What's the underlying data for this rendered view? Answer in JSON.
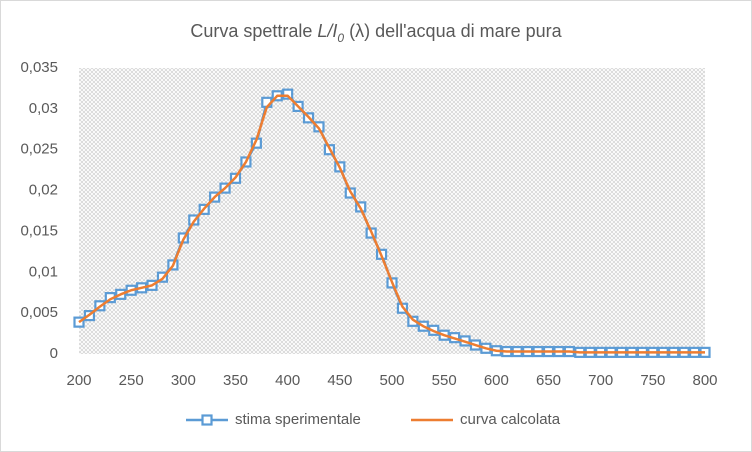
{
  "chart_data": {
    "type": "line",
    "title": [
      "Curva spettrale ",
      "L/I",
      "0",
      " (λ)",
      " dell'acqua di mare pura"
    ],
    "x": [
      200,
      210,
      220,
      230,
      240,
      250,
      260,
      270,
      280,
      290,
      300,
      310,
      320,
      330,
      340,
      350,
      360,
      370,
      380,
      390,
      400,
      410,
      420,
      430,
      440,
      450,
      460,
      470,
      480,
      490,
      500,
      510,
      520,
      530,
      540,
      550,
      560,
      570,
      580,
      590,
      600,
      610,
      620,
      630,
      640,
      650,
      660,
      670,
      680,
      690,
      700,
      710,
      720,
      730,
      740,
      750,
      760,
      770,
      780,
      790,
      800
    ],
    "series": [
      {
        "name": "stima sperimentale",
        "color": "#5b9bd5",
        "marker": "square",
        "values": [
          0.0039,
          0.0047,
          0.0059,
          0.0069,
          0.0073,
          0.0078,
          0.0081,
          0.0084,
          0.0094,
          0.0109,
          0.0142,
          0.0164,
          0.0177,
          0.0192,
          0.0203,
          0.0215,
          0.0235,
          0.0258,
          0.0308,
          0.0316,
          0.0318,
          0.0303,
          0.0289,
          0.0278,
          0.025,
          0.0229,
          0.0197,
          0.018,
          0.0148,
          0.0122,
          0.0087,
          0.0056,
          0.004,
          0.0034,
          0.0029,
          0.0023,
          0.002,
          0.0016,
          0.0011,
          0.0007,
          0.0004,
          0.0003,
          0.0003,
          0.0003,
          0.0003,
          0.0003,
          0.0003,
          0.0003,
          0.0002,
          0.0002,
          0.0002,
          0.0002,
          0.0002,
          0.0002,
          0.0002,
          0.0002,
          0.0002,
          0.0002,
          0.0002,
          0.0002,
          0.0002
        ]
      },
      {
        "name": "curva calcolata",
        "color": "#ed7d31",
        "values": [
          0.0039,
          0.0048,
          0.0058,
          0.0067,
          0.0073,
          0.0078,
          0.0081,
          0.0084,
          0.0092,
          0.0108,
          0.014,
          0.0162,
          0.0178,
          0.0192,
          0.0203,
          0.0216,
          0.0235,
          0.0262,
          0.0302,
          0.0316,
          0.0316,
          0.0303,
          0.029,
          0.0276,
          0.0252,
          0.0228,
          0.0199,
          0.0178,
          0.015,
          0.012,
          0.0088,
          0.0058,
          0.0042,
          0.0034,
          0.0028,
          0.0023,
          0.0019,
          0.0015,
          0.0011,
          0.0007,
          0.0004,
          0.0003,
          0.0003,
          0.0003,
          0.0003,
          0.0003,
          0.0003,
          0.0003,
          0.0002,
          0.0002,
          0.0002,
          0.0002,
          0.0002,
          0.0002,
          0.0002,
          0.0002,
          0.0002,
          0.0002,
          0.0002,
          0.0002,
          0.0002
        ]
      }
    ],
    "xlim": [
      200,
      800
    ],
    "xticks": [
      200,
      250,
      300,
      350,
      400,
      450,
      500,
      550,
      600,
      650,
      700,
      750,
      800
    ],
    "ylim": [
      0,
      0.035
    ],
    "yticks": [
      0,
      {
        "value": 0.005,
        "label": "0,005"
      },
      {
        "value": 0.01,
        "label": "0,01"
      },
      {
        "value": 0.015,
        "label": "0,015"
      },
      {
        "value": 0.02,
        "label": "0,02"
      },
      {
        "value": 0.025,
        "label": "0,025"
      },
      {
        "value": 0.03,
        "label": "0,03"
      },
      {
        "value": 0.035,
        "label": "0,035"
      }
    ],
    "grid": false,
    "legend": "bottom"
  }
}
